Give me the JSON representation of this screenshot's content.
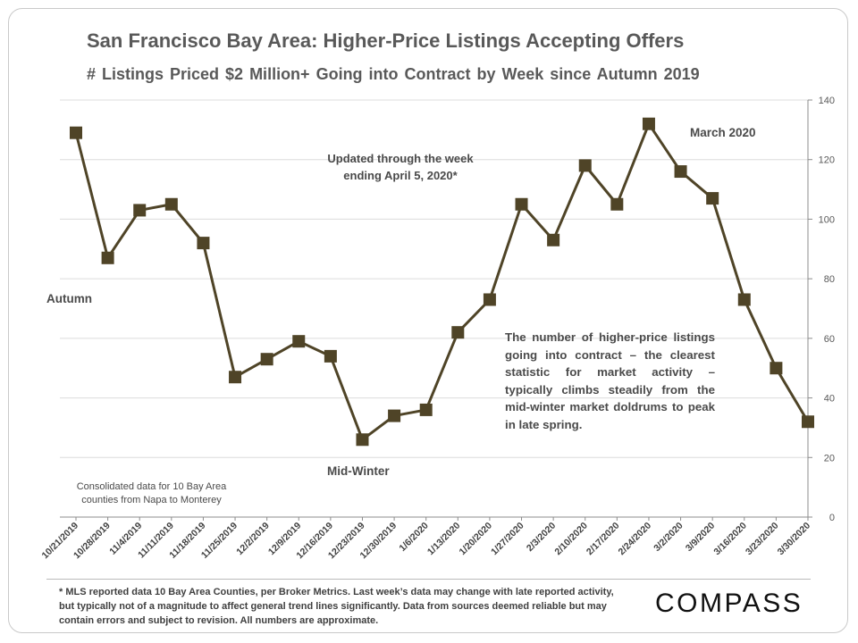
{
  "header": {
    "title": "San Francisco Bay Area: Higher-Price Listings Accepting Offers",
    "subtitle": "# Listings Priced $2 Million+ Going into Contract by Week since Autumn 2019"
  },
  "annotations": {
    "updated_line1": "Updated through the week",
    "updated_line2": "ending April 5, 2020*",
    "march": "March 2020",
    "autumn": "Autumn",
    "midwinter": "Mid-Winter",
    "description": "The number of higher-price listings going into contract – the clearest statistic for market activity – typically climbs steadily from the mid-winter market doldrums to peak in late spring.",
    "consolidated_line1": "Consolidated data for 10 Bay Area",
    "consolidated_line2": "counties from Napa to Monterey"
  },
  "footnote": {
    "text": "* MLS reported data 10 Bay Area Counties, per Broker Metrics. Last week’s data may change with late reported activity, but typically not of a magnitude to affect general trend lines significantly. Data from sources deemed reliable but may contain errors and subject to revision. All numbers are approximate."
  },
  "logo": {
    "text": "COMPASS"
  },
  "colors": {
    "series": "#4f4427",
    "text": "#595959",
    "grid": "#dcdcdc"
  },
  "chart_data": {
    "type": "line",
    "title": "San Francisco Bay Area: Higher-Price Listings Accepting Offers",
    "subtitle": "# Listings Priced $2 Million+ Going into Contract by Week since Autumn 2019",
    "categories": [
      "10/21/2019",
      "10/28/2019",
      "11/4/2019",
      "11/11/2019",
      "11/18/2019",
      "11/25/2019",
      "12/2/2019",
      "12/9/2019",
      "12/16/2019",
      "12/23/2019",
      "12/30/2019",
      "1/6/2020",
      "1/13/2020",
      "1/20/2020",
      "1/27/2020",
      "2/3/2020",
      "2/10/2020",
      "2/17/2020",
      "2/24/2020",
      "3/2/2020",
      "3/9/2020",
      "3/16/2020",
      "3/23/2020",
      "3/30/2020"
    ],
    "series": [
      {
        "name": "Listings $2M+ going into contract",
        "values": [
          129,
          87,
          103,
          105,
          92,
          47,
          53,
          59,
          54,
          26,
          34,
          36,
          62,
          73,
          105,
          93,
          118,
          105,
          132,
          116,
          107,
          73,
          50,
          32
        ]
      }
    ],
    "ylim": [
      0,
      140
    ],
    "yticks": [
      0,
      20,
      40,
      60,
      80,
      100,
      120,
      140
    ],
    "y_axis_side": "right",
    "grid": true,
    "marker": "square"
  }
}
